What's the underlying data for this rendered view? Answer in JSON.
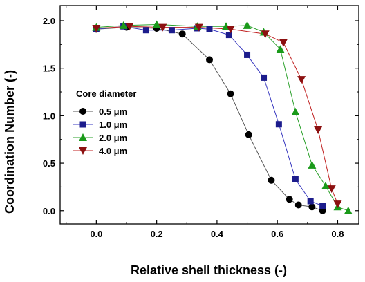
{
  "chart_data": {
    "type": "line",
    "xlabel": "Relative shell thickness (-)",
    "ylabel": "Coordination Number (-)",
    "xlim": [
      -0.12,
      0.87
    ],
    "ylim": [
      -0.14,
      2.16
    ],
    "xticks": [
      "0.0",
      "0.2",
      "0.4",
      "0.6",
      "0.8"
    ],
    "xtick_values": [
      0.0,
      0.2,
      0.4,
      0.6,
      0.8
    ],
    "yticks": [
      "0.0",
      "0.5",
      "1.0",
      "1.5",
      "2.0"
    ],
    "ytick_values": [
      0.0,
      0.5,
      1.0,
      1.5,
      2.0
    ],
    "grid": false,
    "legend_title": "Core diameter",
    "legend_position": "left",
    "series": [
      {
        "name": "0.5 μm",
        "marker": "circle",
        "color": "#000000",
        "line_color": "#555555",
        "x": [
          0.0,
          0.1,
          0.2,
          0.285,
          0.375,
          0.445,
          0.505,
          0.58,
          0.64,
          0.67,
          0.715,
          0.75
        ],
        "y": [
          1.91,
          1.93,
          1.92,
          1.86,
          1.59,
          1.23,
          0.8,
          0.32,
          0.12,
          0.06,
          0.04,
          0.0
        ]
      },
      {
        "name": "1.0 μm",
        "marker": "square",
        "color": "#1c1c8c",
        "line_color": "#3a3ac0",
        "x": [
          0.0,
          0.09,
          0.165,
          0.25,
          0.335,
          0.375,
          0.44,
          0.5,
          0.555,
          0.605,
          0.66,
          0.71,
          0.75
        ],
        "y": [
          1.91,
          1.94,
          1.9,
          1.9,
          1.92,
          1.91,
          1.85,
          1.64,
          1.4,
          0.91,
          0.33,
          0.1,
          0.05
        ]
      },
      {
        "name": "2.0 μm",
        "marker": "triangle-up",
        "color": "#1a9a1a",
        "line_color": "#2aa02a",
        "x": [
          0.0,
          0.09,
          0.2,
          0.335,
          0.43,
          0.5,
          0.555,
          0.61,
          0.66,
          0.715,
          0.76,
          0.8,
          0.835
        ],
        "y": [
          1.93,
          1.95,
          1.96,
          1.94,
          1.94,
          1.95,
          1.88,
          1.7,
          1.04,
          0.48,
          0.26,
          0.04,
          0.0
        ]
      },
      {
        "name": "4.0 μm",
        "marker": "triangle-down",
        "color": "#8c1010",
        "line_color": "#c02020",
        "x": [
          0.0,
          0.11,
          0.22,
          0.34,
          0.445,
          0.56,
          0.62,
          0.68,
          0.735,
          0.78,
          0.8
        ],
        "y": [
          1.92,
          1.94,
          1.93,
          1.93,
          1.91,
          1.86,
          1.77,
          1.38,
          0.85,
          0.23,
          0.07
        ]
      }
    ]
  }
}
